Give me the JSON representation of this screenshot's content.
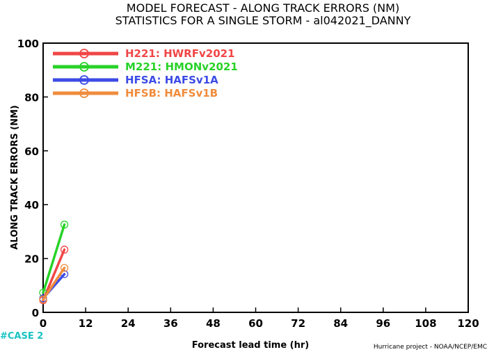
{
  "chart_data": {
    "type": "line",
    "title": "MODEL FORECAST - ALONG TRACK ERRORS (NM)",
    "subtitle": "STATISTICS FOR A SINGLE STORM - al042021_DANNY",
    "xlabel": "Forecast lead time (hr)",
    "ylabel": "ALONG TRACK ERRORS (NM)",
    "xlim": [
      0,
      120
    ],
    "ylim": [
      0,
      100
    ],
    "x_ticks": [
      0,
      12,
      24,
      36,
      48,
      60,
      72,
      84,
      96,
      108,
      120
    ],
    "y_ticks": [
      0,
      20,
      40,
      60,
      80,
      100
    ],
    "grid": false,
    "legend_position": "top-left",
    "series": [
      {
        "name": "H221: HWRFv2021",
        "color": "#f04646",
        "x": [
          0,
          6
        ],
        "y": [
          4.5,
          23.3
        ]
      },
      {
        "name": "M221: HMONv2021",
        "color": "#28d228",
        "x": [
          0,
          6
        ],
        "y": [
          7.3,
          32.6
        ]
      },
      {
        "name": "HFSA: HAFSv1A",
        "color": "#3c4be6",
        "x": [
          0,
          6
        ],
        "y": [
          5.2,
          14.2
        ]
      },
      {
        "name": "HFSB: HAFSv1B",
        "color": "#f08c3c",
        "x": [
          0,
          6
        ],
        "y": [
          4.8,
          16.5
        ]
      }
    ],
    "annotations": {
      "case_label": "#CASE 2",
      "credit": "Hurricane project - NOAA/NCEP/EMC"
    }
  }
}
